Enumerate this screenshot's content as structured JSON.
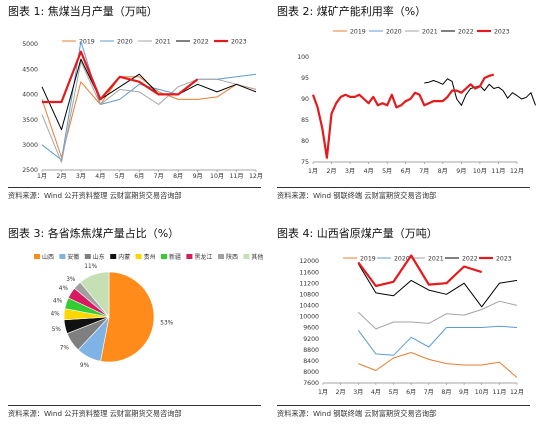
{
  "panels": [
    {
      "title": "图表 1:  焦煤当月产量（万吨）",
      "source": "资料来源：Wind 公开资料整理 云财富期货交易咨询部"
    },
    {
      "title": "图表 2:  煤矿产能利用率（%）",
      "source": "资料来源：Wind 钢联终端 云财富期货交易咨询部"
    },
    {
      "title": "图表 3:  各省炼焦煤产量占比（%）",
      "source": "资料来源：Wind 公开资料整理 云财富期货交易咨询部"
    },
    {
      "title": "图表 4:  山西省原煤产量（万吨）",
      "source": "资料来源：Wind 钢联终端 云财富期货交易咨询部"
    }
  ],
  "chart_data": [
    {
      "type": "line",
      "title": "焦煤当月产量（万吨）",
      "categories": [
        "1月",
        "2月",
        "3月",
        "4月",
        "5月",
        "6月",
        "7月",
        "8月",
        "9月",
        "10月",
        "11月",
        "12月"
      ],
      "ylim": [
        2500,
        5000
      ],
      "yticks": [
        2500,
        3000,
        3500,
        4000,
        4500,
        5000
      ],
      "legend": "top",
      "series": [
        {
          "name": "2019",
          "color": "#ed7d31",
          "width": 1,
          "values": [
            3900,
            2750,
            4250,
            3800,
            4350,
            4350,
            4050,
            3900,
            3900,
            3950,
            4200,
            4100
          ]
        },
        {
          "name": "2020",
          "color": "#5b9bd5",
          "width": 1,
          "values": [
            3000,
            2700,
            5050,
            3800,
            3900,
            4200,
            4100,
            4000,
            4300,
            4300,
            4350,
            4400
          ]
        },
        {
          "name": "2021",
          "color": "#a5a5a5",
          "width": 1,
          "values": [
            3600,
            2650,
            4650,
            3800,
            4100,
            4050,
            3800,
            4150,
            4300,
            4300,
            4200,
            4100
          ]
        },
        {
          "name": "2022",
          "color": "#000000",
          "width": 1,
          "values": [
            4150,
            3300,
            4700,
            3900,
            4150,
            4400,
            4000,
            4000,
            4200,
            4050,
            4200,
            4050
          ]
        },
        {
          "name": "2023",
          "color": "#e41a1c",
          "width": 2.2,
          "values": [
            3850,
            3850,
            4850,
            3900,
            4350,
            4250,
            4000,
            4000,
            4300,
            null,
            null,
            null
          ]
        }
      ]
    },
    {
      "type": "line",
      "title": "煤矿产能利用率（%）",
      "categories": [
        "1月",
        "2月",
        "3月",
        "4月",
        "5月",
        "6月",
        "7月",
        "8月",
        "9月",
        "10月",
        "11月",
        "12月"
      ],
      "ylim": [
        75,
        100
      ],
      "yticks": [
        75,
        80,
        85,
        90,
        95,
        100
      ],
      "legend": "top",
      "series": [
        {
          "name": "2019",
          "color": "#ed7d31",
          "width": 1,
          "x": [],
          "values": []
        },
        {
          "name": "2020",
          "color": "#5b9bd5",
          "width": 1,
          "x": [],
          "values": []
        },
        {
          "name": "2021",
          "color": "#a5a5a5",
          "width": 1,
          "x": [],
          "values": []
        },
        {
          "name": "2022",
          "color": "#000000",
          "width": 1,
          "x": [
            7.0,
            7.25,
            7.5,
            7.75,
            8.0,
            8.25,
            8.5,
            8.75,
            9.0,
            9.25,
            9.5,
            9.75,
            10.0,
            10.25,
            10.5,
            10.75,
            11.0,
            11.25,
            11.5,
            11.75,
            12.0,
            12.25,
            12.5,
            12.75,
            13.0
          ],
          "values": [
            93.8,
            94.0,
            94.4,
            94.0,
            93.5,
            94.8,
            94.2,
            90.0,
            88.5,
            91.0,
            92.5,
            92.8,
            93.2,
            92.0,
            93.5,
            92.5,
            92.8,
            92.0,
            90.2,
            91.5,
            90.8,
            90.0,
            90.4,
            91.5,
            88.5
          ]
        },
        {
          "name": "2023",
          "color": "#e41a1c",
          "width": 2.2,
          "x": [
            1.0,
            1.25,
            1.5,
            1.75,
            2.0,
            2.25,
            2.5,
            2.75,
            3.0,
            3.25,
            3.5,
            3.75,
            4.0,
            4.25,
            4.5,
            4.75,
            5.0,
            5.25,
            5.5,
            5.75,
            6.0,
            6.25,
            6.5,
            6.75,
            7.0,
            7.25,
            7.5,
            7.75,
            8.0,
            8.25,
            8.5,
            8.75,
            9.0,
            9.25,
            9.5,
            9.75,
            10.0,
            10.25,
            10.5,
            10.75,
            11.0,
            11.25
          ],
          "values": [
            91.0,
            88.0,
            83.0,
            76.0,
            86.5,
            89.0,
            90.5,
            91.0,
            90.5,
            90.5,
            91.0,
            90.0,
            89.0,
            90.5,
            88.5,
            89.0,
            88.5,
            91.0,
            88.0,
            88.5,
            89.5,
            90.0,
            91.5,
            91.0,
            88.5,
            89.0,
            89.5,
            89.5,
            89.5,
            90.5,
            92.0,
            92.0,
            91.5,
            92.5,
            93.5,
            92.5,
            93.0,
            95.0,
            95.5,
            95.8,
            null,
            null
          ]
        }
      ]
    },
    {
      "type": "pie",
      "title": "各省炼焦煤产量占比（%）",
      "legend": "top",
      "series": [
        {
          "name": "山西",
          "value": 53,
          "label": "53%",
          "color": "#ff8c1a"
        },
        {
          "name": "安徽",
          "value": 9,
          "label": "9%",
          "color": "#7fb2e5"
        },
        {
          "name": "山东",
          "value": 7,
          "label": "7%",
          "color": "#7f7f7f"
        },
        {
          "name": "内蒙",
          "value": 5,
          "label": "5%",
          "color": "#111111"
        },
        {
          "name": "贵州",
          "value": 4,
          "label": "4%",
          "color": "#ffd700"
        },
        {
          "name": "新疆",
          "value": 4,
          "label": "4%",
          "color": "#33cc33"
        },
        {
          "name": "黑龙江",
          "value": 4,
          "label": "4%",
          "color": "#d81b60"
        },
        {
          "name": "陕西",
          "value": 3,
          "label": "3%",
          "color": "#a0a0a0"
        },
        {
          "name": "其他",
          "value": 11,
          "label": "11%",
          "color": "#c5e0b4"
        }
      ]
    },
    {
      "type": "line",
      "title": "山西省原煤产量（万吨）",
      "categories": [
        "1月",
        "2月",
        "3月",
        "4月",
        "5月",
        "6月",
        "7月",
        "8月",
        "9月",
        "10月",
        "11月",
        "12月"
      ],
      "ylim": [
        7600,
        12000
      ],
      "yticks": [
        7600,
        8000,
        8400,
        8800,
        9200,
        9600,
        10000,
        10400,
        10800,
        11200,
        11600,
        12000
      ],
      "legend": "top",
      "series": [
        {
          "name": "2019",
          "color": "#ed7d31",
          "width": 1,
          "values": [
            null,
            null,
            8300,
            8050,
            8500,
            8700,
            8450,
            8300,
            8250,
            8250,
            8350,
            7800
          ]
        },
        {
          "name": "2020",
          "color": "#5b9bd5",
          "width": 1,
          "values": [
            null,
            null,
            9500,
            8650,
            8600,
            9250,
            8900,
            9600,
            9600,
            9600,
            9650,
            9600
          ]
        },
        {
          "name": "2021",
          "color": "#a5a5a5",
          "width": 1,
          "values": [
            null,
            null,
            10150,
            9550,
            9800,
            9800,
            9750,
            10100,
            10050,
            10250,
            10550,
            10400
          ]
        },
        {
          "name": "2022",
          "color": "#000000",
          "width": 1,
          "values": [
            null,
            null,
            11900,
            10850,
            10750,
            11300,
            10950,
            10800,
            11200,
            10350,
            11200,
            11300
          ]
        },
        {
          "name": "2023",
          "color": "#e41a1c",
          "width": 2.2,
          "values": [
            null,
            null,
            11950,
            11100,
            11250,
            12200,
            11150,
            11200,
            11800,
            11600,
            null,
            null
          ]
        }
      ]
    }
  ]
}
